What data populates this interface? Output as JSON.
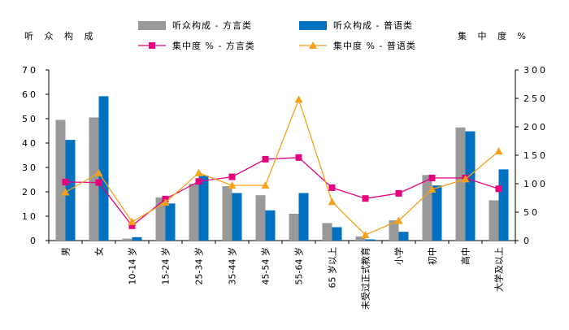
{
  "chart_data": {
    "type": "bar",
    "title": "",
    "left_axis_label": "听 众 构 成",
    "right_axis_label": "集 中 度  %",
    "categories": [
      "男",
      "女",
      "10-14 岁",
      "15-24 岁",
      "25-34 岁",
      "35-44 岁",
      "45-54 岁",
      "55-64 岁",
      "65 岁以上",
      "未受过正式教育",
      "小学",
      "初中",
      "高中",
      "大学及以上"
    ],
    "y_left_range": [
      0,
      70
    ],
    "y_left_ticks": [
      0,
      10,
      20,
      30,
      40,
      50,
      60,
      70
    ],
    "y_right_range": [
      0,
      300
    ],
    "y_right_ticks": [
      0,
      50,
      100,
      150,
      200,
      250,
      300
    ],
    "grid": false,
    "legend_position": "top",
    "series": [
      {
        "name": "听众构成 - 方言类",
        "kind": "bar",
        "axis": "left",
        "color": "#999999",
        "values": [
          49.5,
          50.5,
          0.8,
          17.7,
          23.3,
          22.3,
          18.6,
          11.0,
          7.2,
          1.7,
          8.3,
          26.9,
          46.4,
          16.5
        ]
      },
      {
        "name": "听众构成 - 普语类",
        "kind": "bar",
        "axis": "left",
        "color": "#0070C0",
        "values": [
          41.3,
          59.2,
          1.4,
          15.2,
          26.7,
          19.5,
          12.4,
          19.5,
          5.5,
          0.5,
          3.6,
          22.6,
          44.8,
          29.2
        ]
      },
      {
        "name": "集中度 % - 方言类",
        "kind": "line",
        "axis": "right",
        "color": "#E6007E",
        "marker": "square",
        "values": [
          103,
          102,
          26,
          73,
          104,
          112,
          143,
          146,
          93,
          74,
          83,
          110,
          110,
          91
        ]
      },
      {
        "name": "集中度 % - 普语类",
        "kind": "line",
        "axis": "right",
        "color": "#F7A11A",
        "marker": "triangle",
        "values": [
          85,
          119,
          33,
          67,
          119,
          97,
          97,
          248,
          68,
          10,
          35,
          90,
          108,
          157
        ]
      }
    ]
  }
}
